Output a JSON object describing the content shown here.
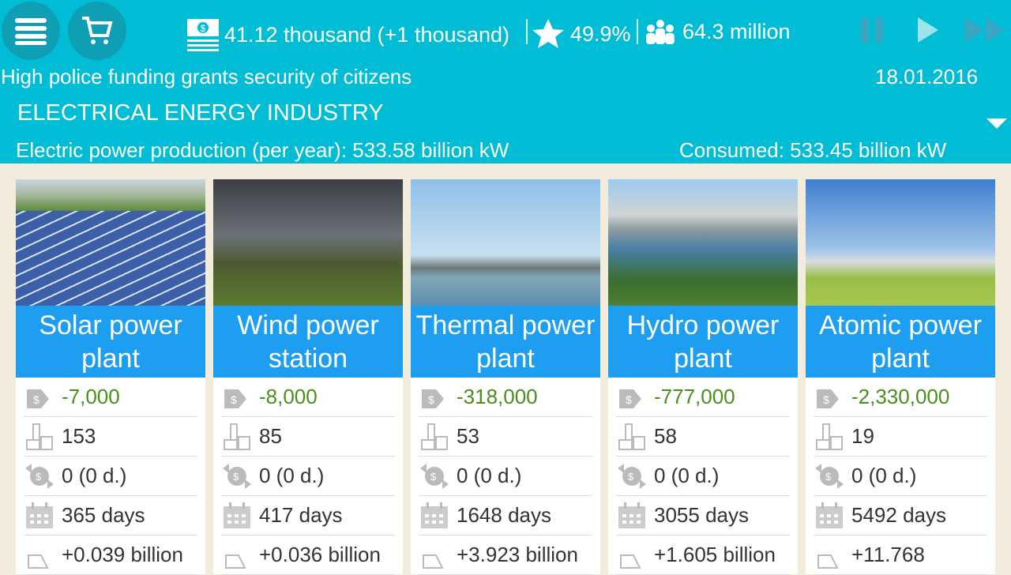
{
  "header": {
    "money": "41.12 thousand (+1 thousand)",
    "rating": "49.9%",
    "population": "64.3 million",
    "message": "High police funding grants security of citizens",
    "date": "18.01.2016",
    "section": "ELECTRICAL ENERGY INDUSTRY",
    "production": "Electric power production (per year): 533.58 billion kW",
    "consumed": "Consumed: 533.45 billion kW"
  },
  "colors": {
    "header": "#00bcd4",
    "card_title": "#1e9ef0",
    "cost": "#4a8f1a",
    "background": "#f1ecdc"
  },
  "cards": [
    {
      "title": "Solar power plant",
      "cost": "-7,000",
      "count": "153",
      "income": "0 (0 d.)",
      "build_time": "365 days",
      "output": "+0.039 billion"
    },
    {
      "title": "Wind power station",
      "cost": "-8,000",
      "count": "85",
      "income": "0 (0 d.)",
      "build_time": "417 days",
      "output": "+0.036 billion"
    },
    {
      "title": "Thermal power plant",
      "cost": "-318,000",
      "count": "53",
      "income": "0 (0 d.)",
      "build_time": "1648 days",
      "output": "+3.923 billion"
    },
    {
      "title": "Hydro power plant",
      "cost": "-777,000",
      "count": "58",
      "income": "0 (0 d.)",
      "build_time": "3055 days",
      "output": "+1.605 billion"
    },
    {
      "title": "Atomic power plant",
      "cost": "-2,330,000",
      "count": "19",
      "income": "0 (0 d.)",
      "build_time": "5492 days",
      "output": "+11.768"
    }
  ]
}
